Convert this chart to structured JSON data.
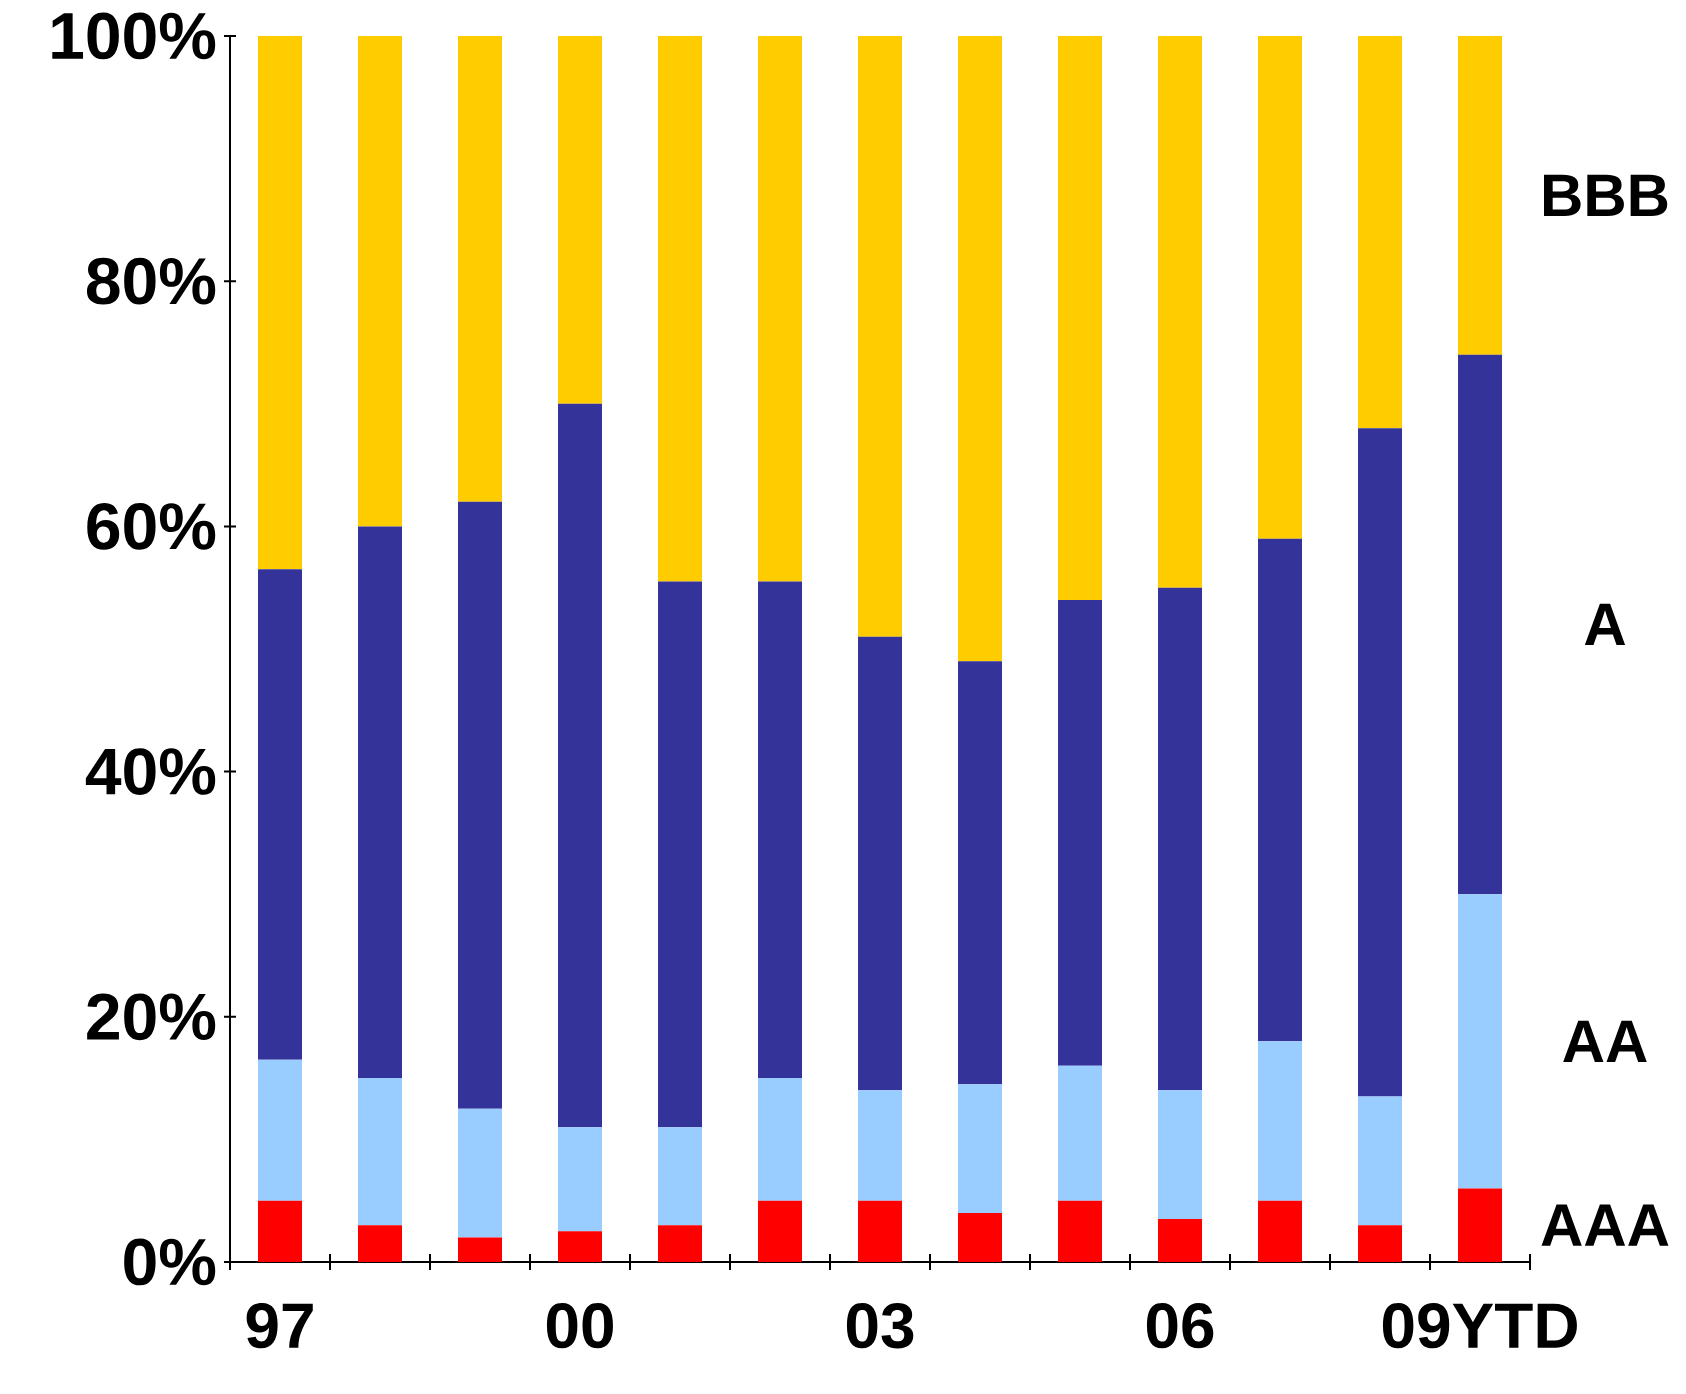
{
  "chart_data": {
    "type": "bar",
    "stacked": true,
    "categories": [
      "97",
      null,
      null,
      "00",
      null,
      null,
      "03",
      null,
      null,
      "06",
      null,
      null,
      "09YTD"
    ],
    "series": [
      {
        "name": "AAA",
        "color": "#ff0000",
        "values": [
          5,
          3,
          2,
          2.5,
          3,
          5,
          5,
          4,
          5,
          3.5,
          5,
          3,
          6
        ]
      },
      {
        "name": "AA",
        "color": "#99ccff",
        "values": [
          11.5,
          12,
          10.5,
          8.5,
          8,
          10,
          9,
          10.5,
          11,
          10.5,
          13,
          10.5,
          24
        ]
      },
      {
        "name": "A",
        "color": "#333399",
        "values": [
          40,
          45,
          49.5,
          59,
          44.5,
          40.5,
          37,
          34.5,
          38,
          41,
          41,
          54.5,
          44
        ]
      },
      {
        "name": "BBB",
        "color": "#ffcc00",
        "values": [
          43.5,
          40,
          38,
          30,
          44.5,
          44.5,
          49,
          51,
          46,
          45,
          41,
          32,
          26
        ]
      }
    ],
    "ylim": [
      0,
      100
    ],
    "yticks": [
      {
        "value": 0,
        "label": "0%"
      },
      {
        "value": 20,
        "label": "20%"
      },
      {
        "value": 40,
        "label": "40%"
      },
      {
        "value": 60,
        "label": "60%"
      },
      {
        "value": 80,
        "label": "80%"
      },
      {
        "value": 100,
        "label": "100%"
      }
    ]
  }
}
